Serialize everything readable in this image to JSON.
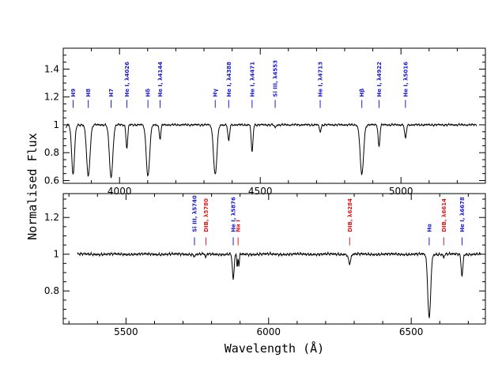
{
  "chart_data": {
    "type": "line",
    "ylabel": "Normalised Flux",
    "xlabel": "Wavelength (Å)",
    "colors": {
      "spectrum": "#000000",
      "hydrogen_helium_silicon": "#1a1ad9",
      "interstellar": "#e01a1a"
    },
    "panels": [
      {
        "id": "top",
        "xlim": [
          3800,
          5300
        ],
        "ylim": [
          0.58,
          1.55
        ],
        "xticks": [
          4000,
          4500,
          5000
        ],
        "xtick_labels": [
          "4000",
          "4500",
          "5000"
        ],
        "yticks": [
          0.6,
          0.8,
          1.0,
          1.2,
          1.4
        ],
        "ytick_labels": [
          "0.6",
          "0.8",
          "1",
          "1.2",
          "1.4"
        ],
        "continuum": 1.0,
        "series_range": [
          3810,
          5270
        ],
        "features": [
          {
            "center": 3798,
            "depth": 0.3,
            "width": 5
          },
          {
            "center": 3835,
            "depth": 0.36,
            "width": 5
          },
          {
            "center": 3889,
            "depth": 0.37,
            "width": 6
          },
          {
            "center": 3970,
            "depth": 0.38,
            "width": 6
          },
          {
            "center": 4026,
            "depth": 0.17,
            "width": 3
          },
          {
            "center": 4101,
            "depth": 0.37,
            "width": 6
          },
          {
            "center": 4144,
            "depth": 0.1,
            "width": 3
          },
          {
            "center": 4340,
            "depth": 0.36,
            "width": 6
          },
          {
            "center": 4388,
            "depth": 0.12,
            "width": 3
          },
          {
            "center": 4471,
            "depth": 0.2,
            "width": 3
          },
          {
            "center": 4553,
            "depth": 0.02,
            "width": 3
          },
          {
            "center": 4713,
            "depth": 0.05,
            "width": 3
          },
          {
            "center": 4861,
            "depth": 0.36,
            "width": 6
          },
          {
            "center": 4922,
            "depth": 0.16,
            "width": 3
          },
          {
            "center": 5016,
            "depth": 0.1,
            "width": 3
          }
        ],
        "lines": [
          {
            "label": "H9",
            "wavelength": 3835,
            "color": "#1a1ad9"
          },
          {
            "label": "H8",
            "wavelength": 3889,
            "color": "#1a1ad9"
          },
          {
            "label": "H7",
            "wavelength": 3970,
            "color": "#1a1ad9"
          },
          {
            "label": "He I, λ4026",
            "wavelength": 4026,
            "color": "#1a1ad9"
          },
          {
            "label": "Hδ",
            "wavelength": 4101,
            "color": "#1a1ad9"
          },
          {
            "label": "He I, λ4144",
            "wavelength": 4144,
            "color": "#1a1ad9"
          },
          {
            "label": "Hγ",
            "wavelength": 4340,
            "color": "#1a1ad9"
          },
          {
            "label": "He I, λ4388",
            "wavelength": 4388,
            "color": "#1a1ad9"
          },
          {
            "label": "He I, λ4471",
            "wavelength": 4471,
            "color": "#1a1ad9"
          },
          {
            "label": "Si III, λ4553",
            "wavelength": 4553,
            "color": "#1a1ad9"
          },
          {
            "label": "He I, λ4713",
            "wavelength": 4713,
            "color": "#1a1ad9"
          },
          {
            "label": "Hβ",
            "wavelength": 4861,
            "color": "#1a1ad9"
          },
          {
            "label": "He I, λ4922",
            "wavelength": 4922,
            "color": "#1a1ad9"
          },
          {
            "label": "He I, λ5016",
            "wavelength": 5016,
            "color": "#1a1ad9"
          }
        ]
      },
      {
        "id": "bottom",
        "xlim": [
          5280,
          6760
        ],
        "ylim": [
          0.62,
          1.33
        ],
        "xticks": [
          5500,
          6000,
          6500
        ],
        "xtick_labels": [
          "5500",
          "6000",
          "6500"
        ],
        "yticks": [
          0.8,
          1.0,
          1.2
        ],
        "ytick_labels": [
          "0.8",
          "1",
          "1.2"
        ],
        "continuum": 1.0,
        "series_range": [
          5330,
          6745
        ],
        "features": [
          {
            "center": 5740,
            "depth": 0.01,
            "width": 3
          },
          {
            "center": 5780,
            "depth": 0.02,
            "width": 2
          },
          {
            "center": 5876,
            "depth": 0.14,
            "width": 3
          },
          {
            "center": 5890,
            "depth": 0.08,
            "width": 1.5
          },
          {
            "center": 5896,
            "depth": 0.07,
            "width": 1.5
          },
          {
            "center": 6284,
            "depth": 0.05,
            "width": 4
          },
          {
            "center": 6563,
            "depth": 0.35,
            "width": 5
          },
          {
            "center": 6614,
            "depth": 0.02,
            "width": 2
          },
          {
            "center": 6678,
            "depth": 0.12,
            "width": 3
          }
        ],
        "lines": [
          {
            "label": "Si III, λ5740",
            "wavelength": 5740,
            "color": "#1a1ad9"
          },
          {
            "label": "DIB, λ5780",
            "wavelength": 5780,
            "color": "#e01a1a"
          },
          {
            "label": "He I, λ5876",
            "wavelength": 5876,
            "color": "#1a1ad9"
          },
          {
            "label": "Na I",
            "wavelength": 5893,
            "color": "#e01a1a"
          },
          {
            "label": "DIB, λ6284",
            "wavelength": 6284,
            "color": "#e01a1a"
          },
          {
            "label": "Hα",
            "wavelength": 6563,
            "color": "#1a1ad9"
          },
          {
            "label": "DIB, λ6614",
            "wavelength": 6614,
            "color": "#e01a1a"
          },
          {
            "label": "He I, λ6678",
            "wavelength": 6678,
            "color": "#1a1ad9"
          }
        ]
      }
    ]
  }
}
